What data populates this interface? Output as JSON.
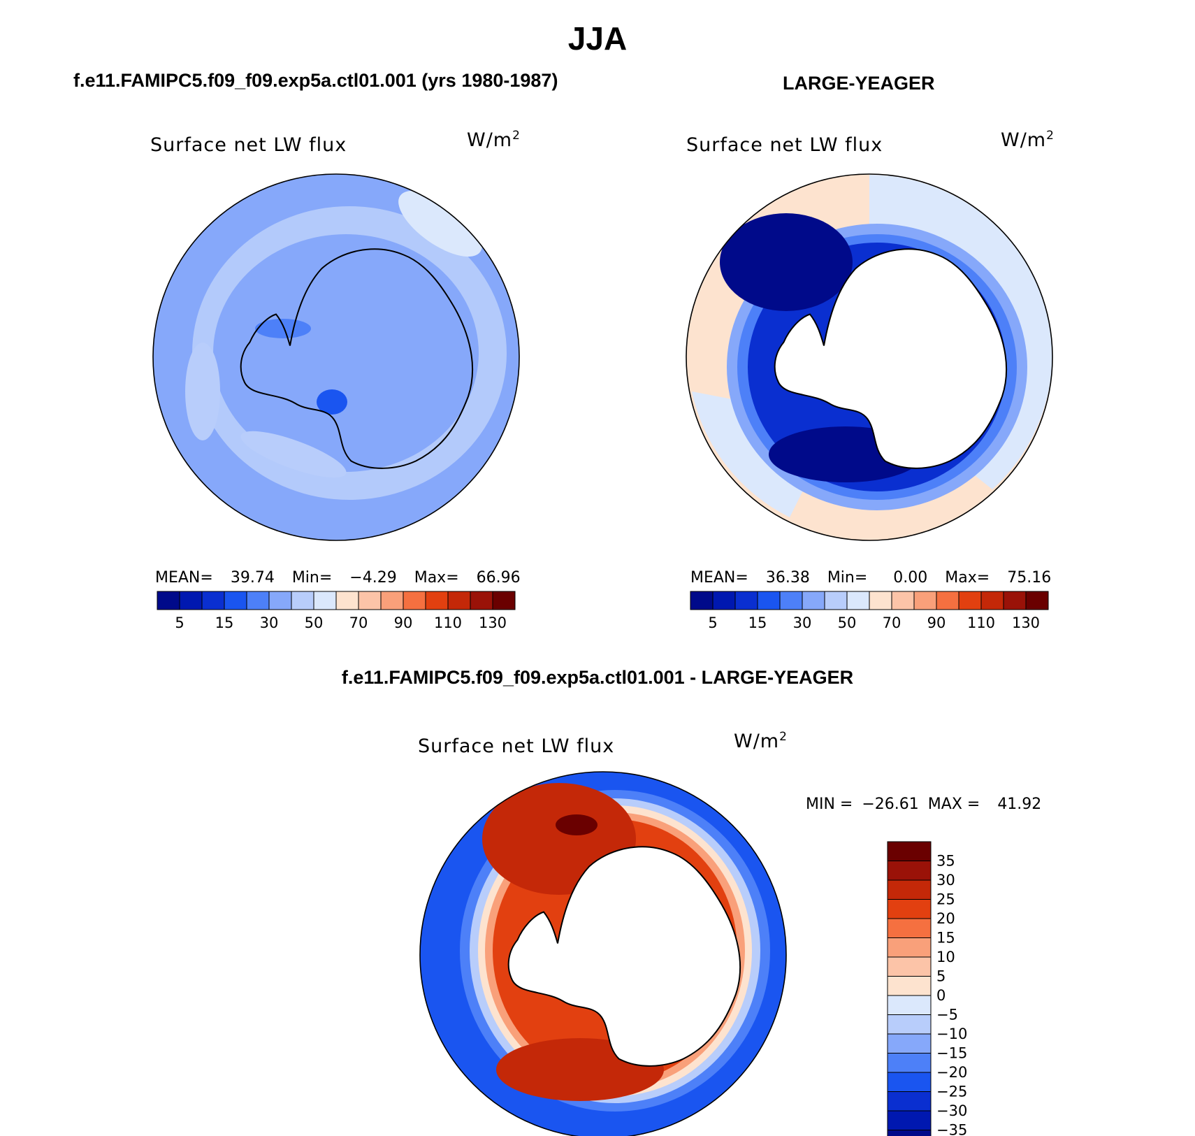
{
  "figure": {
    "title": "JJA",
    "panel1_title": "f.e11.FAMIPC5.f09_f09.exp5a.ctl01.001 (yrs 1980-1987)",
    "panel2_title": "LARGE-YEAGER",
    "panel3_title": "f.e11.FAMIPC5.f09_f09.exp5a.ctl01.001 - LARGE-YEAGER"
  },
  "panels": [
    {
      "variable": "Surface net LW flux",
      "units": "W/m",
      "units_sup": "2",
      "mean_label": "MEAN=",
      "mean": "39.74",
      "min_label": "Min=",
      "min": "−4.29",
      "max_label": "Max=",
      "max": "66.96"
    },
    {
      "variable": "Surface net LW flux",
      "units": "W/m",
      "units_sup": "2",
      "mean_label": "MEAN=",
      "mean": "36.38",
      "min_label": "Min=",
      "min": "0.00",
      "max_label": "Max=",
      "max": "75.16"
    },
    {
      "variable": "Surface net LW flux",
      "units": "W/m",
      "units_sup": "2",
      "min_label": "MIN =",
      "min": "−26.61",
      "max_label": "MAX =",
      "max": "41.92"
    }
  ],
  "colorbar_abs": {
    "colors": [
      "#000a8a",
      "#0018b0",
      "#0a2fd0",
      "#1a55f0",
      "#4d80f8",
      "#86a8fa",
      "#b8cdfb",
      "#dbe8fc",
      "#fde3cf",
      "#fcc4a8",
      "#f9a07a",
      "#f57040",
      "#e24010",
      "#c42808",
      "#9a1208",
      "#6a0000"
    ],
    "tick_labels": [
      "5",
      "15",
      "30",
      "50",
      "70",
      "90",
      "110",
      "130"
    ]
  },
  "colorbar_diff": {
    "colors": [
      "#6a0000",
      "#9a1208",
      "#c42808",
      "#e24010",
      "#f57040",
      "#f9a07a",
      "#fcc4a8",
      "#fde3cf",
      "#dbe8fc",
      "#b8cdfb",
      "#86a8fa",
      "#4d80f8",
      "#1a55f0",
      "#0a2fd0",
      "#0018b0",
      "#000a8a"
    ],
    "tick_labels": [
      "35",
      "30",
      "25",
      "20",
      "15",
      "10",
      "5",
      "0",
      "−5",
      "−10",
      "−15",
      "−20",
      "−25",
      "−30",
      "−35"
    ]
  },
  "chart_data": [
    {
      "type": "heatmap",
      "title": "Surface net LW flux",
      "units": "W/m2",
      "projection": "south polar stereographic",
      "statistics": {
        "mean": 39.74,
        "min": -4.29,
        "max": 66.96
      },
      "contour_levels": [
        5,
        10,
        15,
        20,
        30,
        40,
        50,
        60,
        70,
        80,
        90,
        100,
        110,
        120,
        130
      ],
      "colorbar_ticks": [
        5,
        15,
        30,
        50,
        70,
        90,
        110,
        130
      ]
    },
    {
      "type": "heatmap",
      "title": "Surface net LW flux",
      "units": "W/m2",
      "projection": "south polar stereographic",
      "statistics": {
        "mean": 36.38,
        "min": 0.0,
        "max": 75.16
      },
      "contour_levels": [
        5,
        10,
        15,
        20,
        30,
        40,
        50,
        60,
        70,
        80,
        90,
        100,
        110,
        120,
        130
      ],
      "colorbar_ticks": [
        5,
        15,
        30,
        50,
        70,
        90,
        110,
        130
      ]
    },
    {
      "type": "heatmap",
      "title": "Surface net LW flux",
      "units": "W/m2",
      "projection": "south polar stereographic",
      "statistics": {
        "min": -26.61,
        "max": 41.92
      },
      "contour_levels": [
        -35,
        -30,
        -25,
        -20,
        -15,
        -10,
        -5,
        0,
        5,
        10,
        15,
        20,
        25,
        30,
        35
      ],
      "colorbar_ticks": [
        35,
        30,
        25,
        20,
        15,
        10,
        5,
        0,
        -5,
        -10,
        -15,
        -20,
        -25,
        -30,
        -35
      ]
    }
  ]
}
